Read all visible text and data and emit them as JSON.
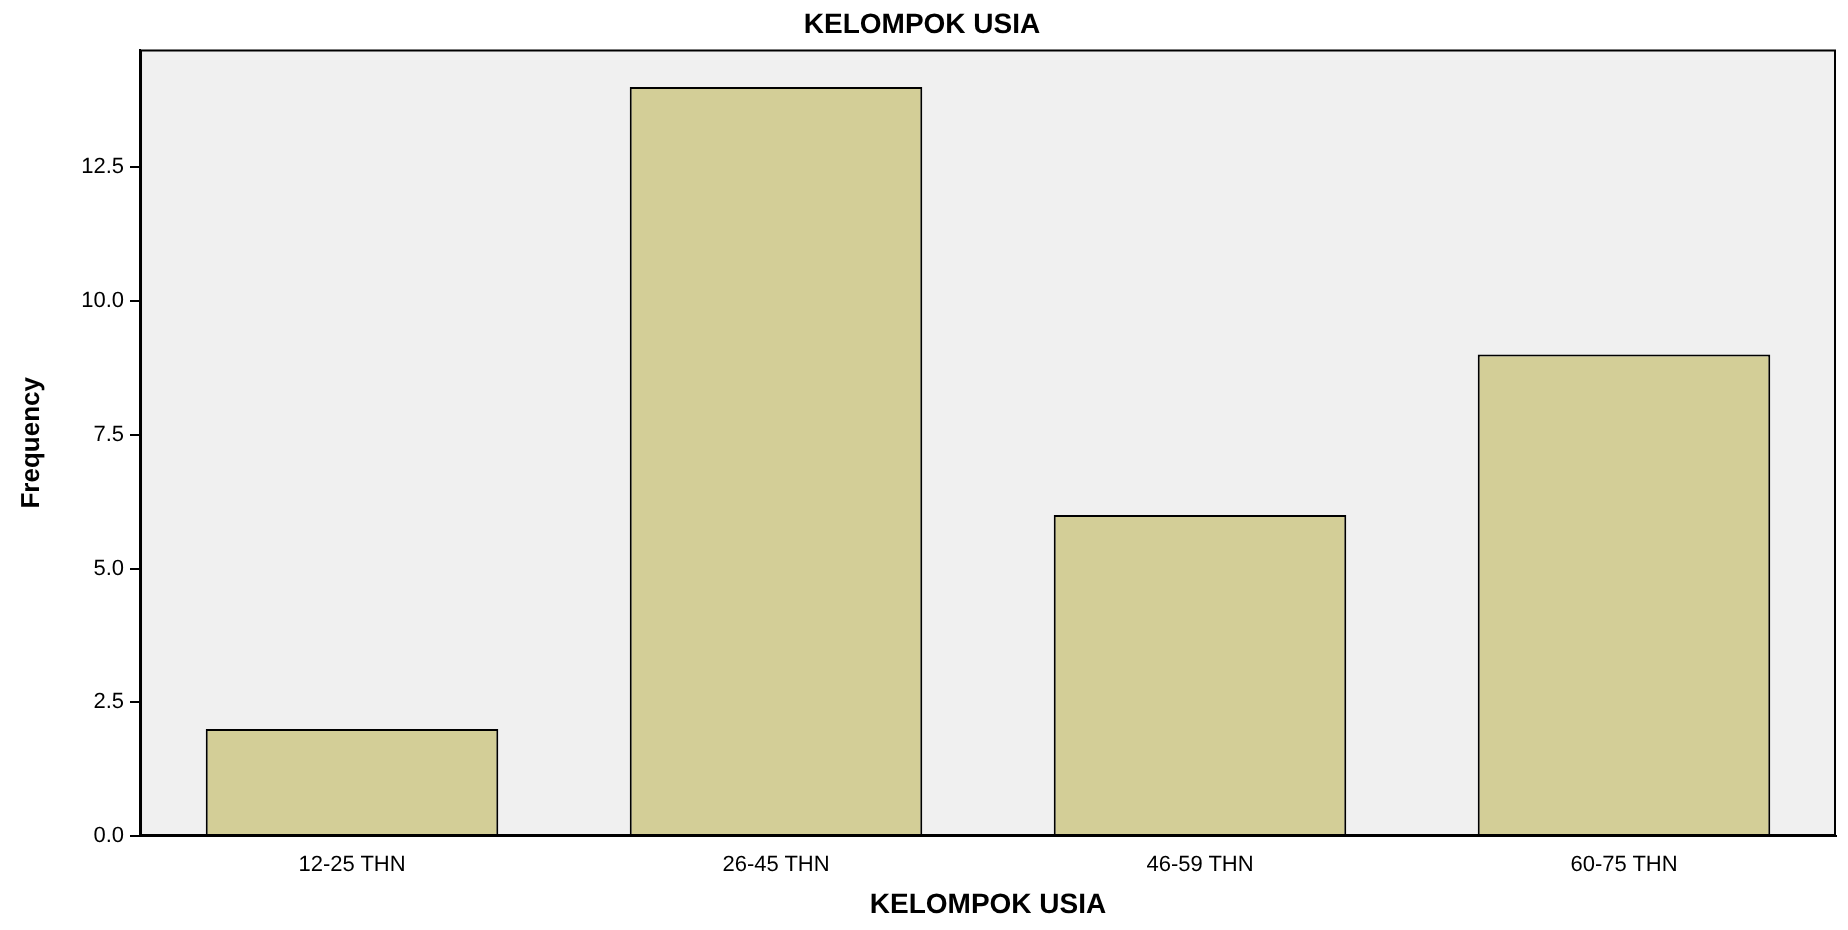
{
  "chart_data": {
    "type": "bar",
    "title": "KELOMPOK USIA",
    "xlabel": "KELOMPOK USIA",
    "ylabel": "Frequency",
    "categories": [
      "12-25 THN",
      "26-45 THN",
      "46-59 THN",
      "60-75 THN"
    ],
    "values": [
      2,
      14,
      6,
      9
    ],
    "color": "#d3ce97",
    "ylim": [
      0,
      14.7
    ],
    "yticks": [
      {
        "value": 0,
        "label": "0.0"
      },
      {
        "value": 2.5,
        "label": "2.5"
      },
      {
        "value": 5,
        "label": "5.0"
      },
      {
        "value": 7.5,
        "label": "7.5"
      },
      {
        "value": 10,
        "label": "10.0"
      },
      {
        "value": 12.5,
        "label": "12.5"
      }
    ],
    "grid": false,
    "legend": false
  }
}
